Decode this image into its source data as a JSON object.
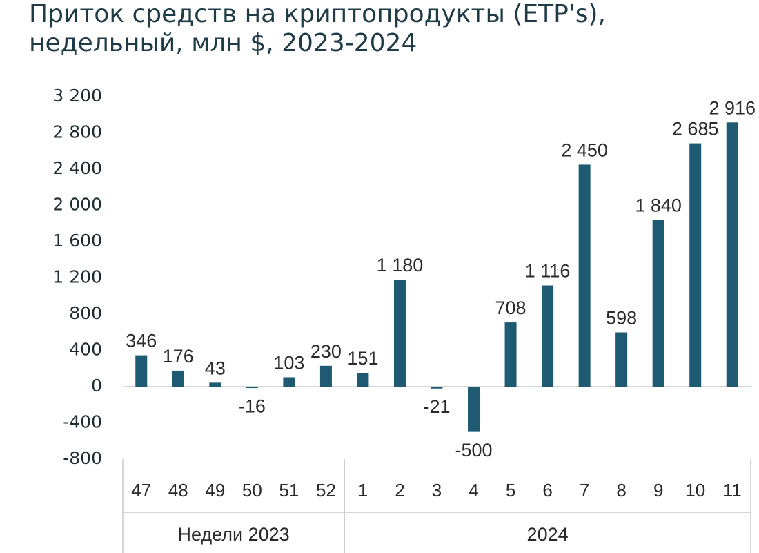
{
  "title_line1": "Приток средств на криптопродукты (ETP's),",
  "title_line2": "недельный, млн $, 2023-2024",
  "colors": {
    "bar": "#1e5a72",
    "axis": "#c8c8c8",
    "text": "#2a2a2a",
    "title": "#1f3b46"
  },
  "chart_data": {
    "type": "bar",
    "title": "Приток средств на криптопродукты (ETP's), недельный, млн $, 2023-2024",
    "ylim": [
      -800,
      3200
    ],
    "yticks": [
      3200,
      2800,
      2400,
      2000,
      1600,
      1200,
      800,
      400,
      0,
      -400,
      -800
    ],
    "ytick_labels": [
      "3 200",
      "2 800",
      "2 400",
      "2 000",
      "1 600",
      "1 200",
      "800",
      "400",
      "0",
      "-400",
      "-800"
    ],
    "categories": [
      "47",
      "48",
      "49",
      "50",
      "51",
      "52",
      "1",
      "2",
      "3",
      "4",
      "5",
      "6",
      "7",
      "8",
      "9",
      "10",
      "11"
    ],
    "values": [
      346,
      176,
      43,
      -16,
      103,
      230,
      151,
      1180,
      -21,
      -500,
      708,
      1116,
      2450,
      598,
      1840,
      2685,
      2916
    ],
    "value_labels": [
      "346",
      "176",
      "43",
      "-16",
      "103",
      "230",
      "151",
      "1 180",
      "-21",
      "-500",
      "708",
      "1 116",
      "2 450",
      "598",
      "1 840",
      "2 685",
      "2 916"
    ],
    "groups": [
      {
        "label": "Недели 2023",
        "count": 6
      },
      {
        "label": "2024",
        "count": 11
      }
    ],
    "grid": false
  }
}
